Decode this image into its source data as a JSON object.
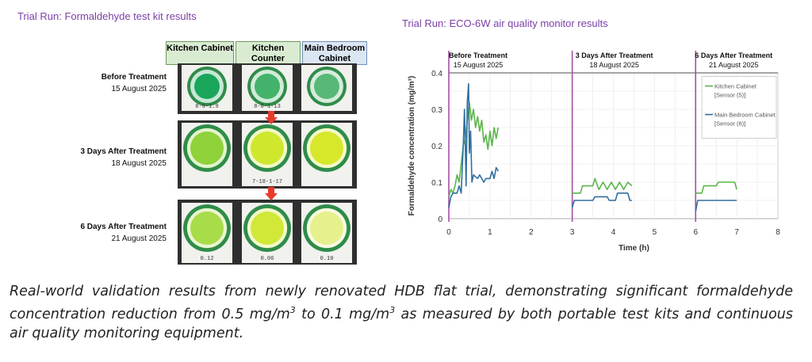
{
  "left": {
    "title": "Trial Run: Formaldehyde test kit results",
    "columns": [
      "Kitchen Cabinet",
      "Kitchen Counter",
      "Main Bedroom Cabinet"
    ],
    "rows": [
      {
        "label": "Before Treatment",
        "date": "15 August 2025"
      },
      {
        "label": "3 Days After Treatment",
        "date": "18 August 2025"
      },
      {
        "label": "6 Days After Treatment",
        "date": "21 August 2025"
      }
    ],
    "card_marks": [
      "8-0-1.9",
      "8-0-1-13",
      "",
      "",
      "7-18-1-17",
      "",
      "0.12",
      "0.06",
      "0.10"
    ],
    "colors": {
      "before_cabinet": "#1aa65a",
      "before_counter": "#43b26a",
      "before_bedroom": "#58b876",
      "after3_cabinet": "#8fd23a",
      "after3_counter": "#cfe82e",
      "after3_bedroom": "#d7e72a",
      "after6_cabinet": "#a9dc49",
      "after6_counter": "#d1e838",
      "after6_bedroom": "#e6f08c",
      "arrow": "#e53b2c"
    }
  },
  "right": {
    "title": "Trial Run: ECO-6W air quality monitor results",
    "phases": [
      {
        "label": "Before Treatment",
        "date": "15 August 2025"
      },
      {
        "label": "3 Days After Treatment",
        "date": "18 August 2025"
      },
      {
        "label": "6 Days After Treatment",
        "date": "21 August 2025"
      }
    ]
  },
  "chart_data": {
    "type": "line",
    "title": "Trial Run: ECO-6W air quality monitor results",
    "xlabel": "Time (h)",
    "ylabel": "Formaldehyde concentration (mg/m³)",
    "xlim": [
      0,
      8
    ],
    "ylim": [
      0,
      0.4
    ],
    "xticks": [
      "0",
      "1",
      "2",
      "3",
      "4",
      "5",
      "6",
      "7",
      "8"
    ],
    "yticks": [
      "0",
      "0.1",
      "0.2",
      "0.3",
      "0.4"
    ],
    "grid": true,
    "legend_position": "top-right",
    "vertical_markers": [
      0,
      3,
      6
    ],
    "series": [
      {
        "name": "Kitchen Cabinet [Sensor (5)]",
        "color": "#5ab64a",
        "segments": [
          [
            [
              0,
              0.06
            ],
            [
              0.05,
              0.08
            ],
            [
              0.1,
              0.07
            ],
            [
              0.15,
              0.09
            ],
            [
              0.2,
              0.12
            ],
            [
              0.25,
              0.1
            ],
            [
              0.3,
              0.15
            ],
            [
              0.35,
              0.2
            ],
            [
              0.4,
              0.22
            ],
            [
              0.45,
              0.27
            ],
            [
              0.5,
              0.32
            ],
            [
              0.55,
              0.27
            ],
            [
              0.6,
              0.3
            ],
            [
              0.65,
              0.25
            ],
            [
              0.7,
              0.28
            ],
            [
              0.75,
              0.24
            ],
            [
              0.8,
              0.27
            ],
            [
              0.85,
              0.21
            ],
            [
              0.9,
              0.23
            ],
            [
              0.95,
              0.19
            ],
            [
              1.0,
              0.24
            ],
            [
              1.05,
              0.2
            ],
            [
              1.1,
              0.25
            ],
            [
              1.15,
              0.22
            ],
            [
              1.2,
              0.25
            ]
          ],
          [
            [
              3.0,
              0.07
            ],
            [
              3.2,
              0.07
            ],
            [
              3.25,
              0.09
            ],
            [
              3.5,
              0.09
            ],
            [
              3.55,
              0.11
            ],
            [
              3.65,
              0.08
            ],
            [
              3.75,
              0.1
            ],
            [
              3.85,
              0.08
            ],
            [
              3.95,
              0.1
            ],
            [
              4.05,
              0.08
            ],
            [
              4.15,
              0.1
            ],
            [
              4.25,
              0.08
            ],
            [
              4.35,
              0.1
            ],
            [
              4.45,
              0.09
            ]
          ],
          [
            [
              6.0,
              0.07
            ],
            [
              6.15,
              0.07
            ],
            [
              6.2,
              0.09
            ],
            [
              6.5,
              0.09
            ],
            [
              6.55,
              0.1
            ],
            [
              6.95,
              0.1
            ],
            [
              7.0,
              0.08
            ]
          ]
        ]
      },
      {
        "name": "Main Bedroom Cabinet [Sensor (6)]",
        "color": "#2f6fa0",
        "segments": [
          [
            [
              0,
              0.03
            ],
            [
              0.05,
              0.06
            ],
            [
              0.1,
              0.07
            ],
            [
              0.2,
              0.07
            ],
            [
              0.25,
              0.09
            ],
            [
              0.3,
              0.07
            ],
            [
              0.35,
              0.2
            ],
            [
              0.38,
              0.3
            ],
            [
              0.4,
              0.2
            ],
            [
              0.42,
              0.09
            ],
            [
              0.45,
              0.32
            ],
            [
              0.48,
              0.37
            ],
            [
              0.5,
              0.18
            ],
            [
              0.53,
              0.24
            ],
            [
              0.56,
              0.1
            ],
            [
              0.6,
              0.12
            ],
            [
              0.7,
              0.11
            ],
            [
              0.75,
              0.12
            ],
            [
              0.8,
              0.11
            ],
            [
              0.85,
              0.1
            ],
            [
              0.9,
              0.11
            ],
            [
              1.0,
              0.11
            ],
            [
              1.05,
              0.13
            ],
            [
              1.1,
              0.11
            ],
            [
              1.15,
              0.14
            ],
            [
              1.2,
              0.13
            ]
          ],
          [
            [
              3.0,
              0.03
            ],
            [
              3.05,
              0.05
            ],
            [
              3.5,
              0.05
            ],
            [
              3.55,
              0.06
            ],
            [
              3.85,
              0.06
            ],
            [
              3.9,
              0.05
            ],
            [
              4.05,
              0.05
            ],
            [
              4.1,
              0.07
            ],
            [
              4.35,
              0.07
            ],
            [
              4.4,
              0.05
            ],
            [
              4.45,
              0.05
            ]
          ],
          [
            [
              6.0,
              0.02
            ],
            [
              6.05,
              0.05
            ],
            [
              7.0,
              0.05
            ]
          ]
        ]
      }
    ]
  },
  "caption": {
    "part1": "Real-world validation results from newly renovated HDB flat trial, demonstrating significant formaldehyde concentration reduction from 0.5 mg/m",
    "sup1": "3",
    "part2": " to 0.1 mg/m",
    "sup2": "3",
    "part3": " as measured by both portable test kits and continuous air quality monitoring equipment."
  }
}
